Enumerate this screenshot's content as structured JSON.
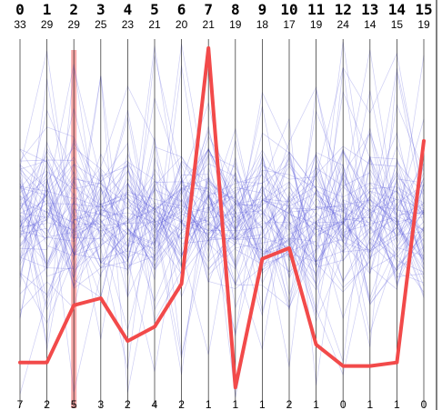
{
  "chart_data": {
    "type": "parallel_coordinates",
    "title": "",
    "axes": [
      {
        "id": "0",
        "max": "33",
        "min": "7"
      },
      {
        "id": "1",
        "max": "29",
        "min": "2"
      },
      {
        "id": "2",
        "max": "29",
        "min": "5"
      },
      {
        "id": "3",
        "max": "25",
        "min": "3"
      },
      {
        "id": "4",
        "max": "23",
        "min": "2"
      },
      {
        "id": "5",
        "max": "21",
        "min": "4"
      },
      {
        "id": "6",
        "max": "20",
        "min": "2"
      },
      {
        "id": "7",
        "max": "21",
        "min": "1"
      },
      {
        "id": "8",
        "max": "19",
        "min": "1"
      },
      {
        "id": "9",
        "max": "18",
        "min": "1"
      },
      {
        "id": "10",
        "max": "17",
        "min": "2"
      },
      {
        "id": "11",
        "max": "19",
        "min": "1"
      },
      {
        "id": "12",
        "max": "24",
        "min": "0"
      },
      {
        "id": "13",
        "max": "14",
        "min": "1"
      },
      {
        "id": "14",
        "max": "15",
        "min": "1"
      },
      {
        "id": "15",
        "max": "19",
        "min": "0"
      }
    ],
    "highlighted_axis": "2",
    "highlighted_series": {
      "color": "#f24a4a",
      "values": [
        0.1,
        0.1,
        0.26,
        0.28,
        0.16,
        0.2,
        0.32,
        0.98,
        0.03,
        0.39,
        0.42,
        0.15,
        0.09,
        0.09,
        0.1,
        0.72
      ]
    },
    "background_lines": {
      "color": "#4b4bd6",
      "count": 70
    }
  }
}
